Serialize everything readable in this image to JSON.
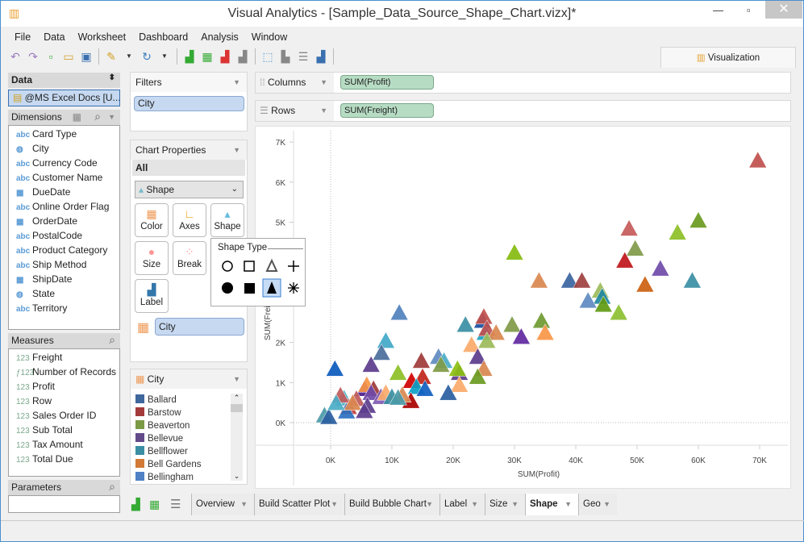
{
  "window": {
    "title": "Visual Analytics - [Sample_Data_Source_Shape_Chart.vizx]*",
    "app_icon": "chart-icon"
  },
  "menu": [
    "File",
    "Data",
    "Worksheet",
    "Dashboard",
    "Analysis",
    "Window"
  ],
  "toolbar": {
    "icons": [
      "undo-icon",
      "redo-icon",
      "new-icon",
      "open-icon",
      "save-icon",
      "connect-icon",
      "refresh-icon",
      "add-chart-icon",
      "add-table-icon",
      "remove-chart-icon",
      "clear-chart-icon",
      "select-icon",
      "bar-icon",
      "sort-icon",
      "label-icon"
    ]
  },
  "vis_tab": "Visualization",
  "data_panel": {
    "title": "Data",
    "source": "@MS Excel Docs [U...",
    "dimensions_title": "Dimensions",
    "dimensions": [
      {
        "type": "abc",
        "label": "Card Type"
      },
      {
        "type": "geo",
        "label": "City"
      },
      {
        "type": "abc",
        "label": "Currency Code"
      },
      {
        "type": "abc",
        "label": "Customer Name"
      },
      {
        "type": "date",
        "label": "DueDate"
      },
      {
        "type": "abc",
        "label": "Online Order Flag"
      },
      {
        "type": "date",
        "label": "OrderDate"
      },
      {
        "type": "abc",
        "label": "PostalCode"
      },
      {
        "type": "abc",
        "label": "Product Category"
      },
      {
        "type": "abc",
        "label": "Ship Method"
      },
      {
        "type": "date",
        "label": "ShipDate"
      },
      {
        "type": "geo",
        "label": "State"
      },
      {
        "type": "abc",
        "label": "Territory"
      }
    ],
    "measures_title": "Measures",
    "measures": [
      {
        "type": "123",
        "label": "Freight"
      },
      {
        "type": "f123",
        "label": "Number of Records"
      },
      {
        "type": "123",
        "label": "Profit"
      },
      {
        "type": "123",
        "label": "Row"
      },
      {
        "type": "123",
        "label": "Sales Order ID"
      },
      {
        "type": "123",
        "label": "Sub Total"
      },
      {
        "type": "123",
        "label": "Tax Amount"
      },
      {
        "type": "123",
        "label": "Total Due"
      }
    ],
    "parameters_title": "Parameters"
  },
  "filters": {
    "title": "Filters",
    "items": [
      "City"
    ]
  },
  "chart_properties": {
    "title": "Chart Properties",
    "scope": "All",
    "mark_type": "Shape",
    "buttons": [
      "Color",
      "Axes",
      "Shape",
      "Size",
      "Break",
      "Label"
    ],
    "color_field": "City"
  },
  "shape_popup": {
    "title": "Shape Type",
    "shapes": [
      "circle-outline",
      "square-outline",
      "triangle-outline",
      "plus",
      "circle-filled",
      "square-filled",
      "triangle-filled",
      "asterisk"
    ],
    "selected": "triangle-filled"
  },
  "legend": {
    "title": "City",
    "items": [
      {
        "label": "Ballard",
        "color": "#3f679e"
      },
      {
        "label": "Barstow",
        "color": "#a33b3b"
      },
      {
        "label": "Beaverton",
        "color": "#7b9a46"
      },
      {
        "label": "Bellevue",
        "color": "#634b8a"
      },
      {
        "label": "Bellflower",
        "color": "#3a8ea3"
      },
      {
        "label": "Bell Gardens",
        "color": "#d27a35"
      },
      {
        "label": "Bellingham",
        "color": "#4f81c4"
      }
    ]
  },
  "shelves": {
    "columns_label": "Columns",
    "columns_value": "SUM(Profit)",
    "rows_label": "Rows",
    "rows_value": "SUM(Freight)"
  },
  "tabs": [
    "Overview",
    "Build Scatter Plot",
    "Build Bubble Chart",
    "Label",
    "Size",
    "Shape",
    "Geo"
  ],
  "active_tab": "Shape",
  "chart_data": {
    "type": "scatter",
    "mark": "triangle",
    "xlabel": "SUM(Profit)",
    "ylabel": "SUM(Freight)",
    "xlim": [
      -6,
      75
    ],
    "ylim": [
      -1.3,
      7.2
    ],
    "xticks": [
      "0K",
      "10K",
      "20K",
      "30K",
      "40K",
      "50K",
      "60K",
      "70K"
    ],
    "yticks": [
      "0K",
      "1K",
      "2K",
      "3K",
      "4K",
      "5K",
      "6K",
      "7K"
    ],
    "units": "thousands",
    "points": [
      [
        69.7,
        6.5,
        "#c0504d"
      ],
      [
        60,
        5.0,
        "#6a9a1f"
      ],
      [
        56.6,
        4.7,
        "#8cbf26"
      ],
      [
        48.7,
        4.8,
        "#c55a5a"
      ],
      [
        49.7,
        4.3,
        "#7f9a48"
      ],
      [
        48,
        4.0,
        "#c0161a"
      ],
      [
        53.8,
        3.8,
        "#6f4aa8"
      ],
      [
        59,
        3.5,
        "#3a8ea3"
      ],
      [
        51.3,
        3.4,
        "#cc6010"
      ],
      [
        34,
        3.5,
        "#d9884f"
      ],
      [
        39,
        3.5,
        "#3a64a0"
      ],
      [
        41,
        3.5,
        "#a04040"
      ],
      [
        44,
        3.25,
        "#9bbb59"
      ],
      [
        44.3,
        3.1,
        "#20879e"
      ],
      [
        42,
        3.0,
        "#5f8ac0"
      ],
      [
        44.5,
        2.9,
        "#5f9a10"
      ],
      [
        47,
        2.7,
        "#8cbf30"
      ],
      [
        30,
        4.2,
        "#85bb10"
      ],
      [
        11.2,
        2.7,
        "#4f81bd"
      ],
      [
        34.4,
        2.5,
        "#6f9a30"
      ],
      [
        29.6,
        2.4,
        "#7f9a48"
      ],
      [
        31.1,
        2.1,
        "#6028a0"
      ],
      [
        35,
        2.2,
        "#f79646"
      ],
      [
        22,
        2.4,
        "#3a8ea3"
      ],
      [
        24.8,
        2.5,
        "#1a4ea0"
      ],
      [
        25,
        2.6,
        "#c0504d"
      ],
      [
        25.2,
        2.2,
        "#20a0c0"
      ],
      [
        25.5,
        2.3,
        "#c05050"
      ],
      [
        27,
        2.2,
        "#d9884f"
      ],
      [
        25.5,
        2.0,
        "#9bbb59"
      ],
      [
        23,
        1.9,
        "#fbaa6a"
      ],
      [
        24,
        1.6,
        "#5c3c8c"
      ],
      [
        9,
        2.0,
        "#40a8c8"
      ],
      [
        8.3,
        1.7,
        "#4a6e9c"
      ],
      [
        6.6,
        1.4,
        "#5c3c8c"
      ],
      [
        0.7,
        1.3,
        "#0a5abd"
      ],
      [
        17.6,
        1.6,
        "#5f8ac0"
      ],
      [
        18.5,
        1.5,
        "#4bacc6"
      ],
      [
        18,
        1.4,
        "#7f9a48"
      ],
      [
        14.8,
        1.5,
        "#a03a3a"
      ],
      [
        11,
        1.2,
        "#8cbf26"
      ],
      [
        15,
        1.1,
        "#c0261a"
      ],
      [
        13.2,
        1.0,
        "#d00000"
      ],
      [
        21,
        1.2,
        "#5c3c8c"
      ],
      [
        20.7,
        1.3,
        "#8cbf10"
      ],
      [
        25,
        1.3,
        "#d9884f"
      ],
      [
        24,
        1.1,
        "#6a9a1f"
      ],
      [
        21,
        0.9,
        "#fbaa6a"
      ],
      [
        14,
        0.85,
        "#0aa0c8"
      ],
      [
        15.4,
        0.8,
        "#1060c0"
      ],
      [
        19.2,
        0.7,
        "#2a5ea0"
      ],
      [
        13.1,
        0.5,
        "#aa0000"
      ],
      [
        11.7,
        0.65,
        "#d9884f"
      ],
      [
        5.5,
        0.8,
        "#4b1a8c"
      ],
      [
        5.9,
        0.9,
        "#f79646"
      ],
      [
        2.2,
        0.56,
        "#4bacc6"
      ],
      [
        2.9,
        0.35,
        "#c04040"
      ],
      [
        2.6,
        0.24,
        "#2a70c0"
      ],
      [
        -1,
        0.14,
        "#4a9aa8"
      ],
      [
        -0.3,
        0.1,
        "#2a5ea0"
      ],
      [
        1.6,
        0.64,
        "#c05a5a"
      ],
      [
        7,
        0.8,
        "#a03a3a"
      ],
      [
        6.6,
        0.7,
        "#6f4aa8"
      ],
      [
        8.2,
        0.6,
        "#7f5ab0"
      ],
      [
        6,
        0.38,
        "#5c3c8c"
      ],
      [
        9,
        0.7,
        "#fbaa6a"
      ],
      [
        10,
        0.6,
        "#3a8ea3"
      ],
      [
        11,
        0.58,
        "#4a9aa8"
      ],
      [
        4.2,
        0.55,
        "#c05a5a"
      ],
      [
        3.6,
        0.45,
        "#d9884f"
      ],
      [
        5.5,
        0.25,
        "#5c3c8c"
      ],
      [
        0.9,
        0.45,
        "#4bacc6"
      ]
    ]
  }
}
